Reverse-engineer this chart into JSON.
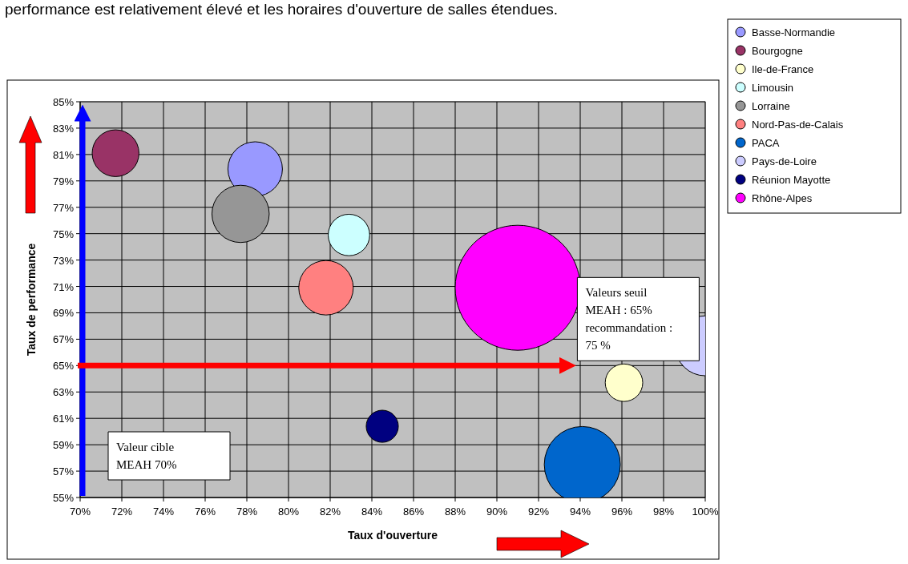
{
  "chart_data": {
    "type": "bubble",
    "annotations": [
      "performance est relativement élevé et les horaires d'ouverture de salles étendues."
    ],
    "xlabel": "Taux d'ouverture",
    "ylabel": "Taux de performance",
    "xlim": [
      70,
      100
    ],
    "ylim": [
      55,
      85
    ],
    "xticks": [
      {
        "value": 70,
        "label": "70%"
      },
      {
        "value": 72,
        "label": "72%"
      },
      {
        "value": 74,
        "label": "74%"
      },
      {
        "value": 76,
        "label": "76%"
      },
      {
        "value": 78,
        "label": "78%"
      },
      {
        "value": 80,
        "label": "80%"
      },
      {
        "value": 82,
        "label": "82%"
      },
      {
        "value": 84,
        "label": "84%"
      },
      {
        "value": 86,
        "label": "86%"
      },
      {
        "value": 88,
        "label": "88%"
      },
      {
        "value": 90,
        "label": "90%"
      },
      {
        "value": 92,
        "label": "92%"
      },
      {
        "value": 94,
        "label": "94%"
      },
      {
        "value": 96,
        "label": "96%"
      },
      {
        "value": 98,
        "label": "98%"
      },
      {
        "value": 100,
        "label": "100%"
      }
    ],
    "yticks": [
      {
        "value": 55,
        "label": "55%"
      },
      {
        "value": 57,
        "label": "57%"
      },
      {
        "value": 59,
        "label": "59%"
      },
      {
        "value": 61,
        "label": "61%"
      },
      {
        "value": 63,
        "label": "63%"
      },
      {
        "value": 65,
        "label": "65%"
      },
      {
        "value": 67,
        "label": "67%"
      },
      {
        "value": 69,
        "label": "69%"
      },
      {
        "value": 71,
        "label": "71%"
      },
      {
        "value": 73,
        "label": "73%"
      },
      {
        "value": 75,
        "label": "75%"
      },
      {
        "value": 77,
        "label": "77%"
      },
      {
        "value": 79,
        "label": "79%"
      },
      {
        "value": 81,
        "label": "81%"
      },
      {
        "value": 83,
        "label": "83%"
      },
      {
        "value": 85,
        "label": "85%"
      }
    ],
    "grid": true,
    "legend": "top right",
    "ref_lines": [
      {
        "axis": "x",
        "value": 70,
        "label": "Valeur cible\nMEAH 70%",
        "color": "#0000ff"
      },
      {
        "axis": "y",
        "value": 65,
        "label": "Valeurs seuil\nMEAH : 65%\nrecommandation :\n75 %",
        "color": "#ff0000"
      }
    ],
    "series": [
      {
        "name": "Basse-Normandie",
        "color": "#9999ff",
        "x": [
          78.4
        ],
        "values": [
          79.9
        ],
        "sizes": [
          0.19
        ]
      },
      {
        "name": "Bourgogne",
        "color": "#993366",
        "x": [
          71.7
        ],
        "values": [
          81.1
        ],
        "sizes": [
          0.14
        ]
      },
      {
        "name": "Ile-de-France",
        "color": "#ffffcc",
        "x": [
          96.1
        ],
        "values": [
          63.7
        ],
        "sizes": [
          0.09
        ]
      },
      {
        "name": "Limousin",
        "color": "#ccffff",
        "x": [
          82.9
        ],
        "values": [
          74.9
        ],
        "sizes": [
          0.11
        ]
      },
      {
        "name": "Lorraine",
        "color": "#969696",
        "x": [
          77.7
        ],
        "values": [
          76.5
        ],
        "sizes": [
          0.21
        ]
      },
      {
        "name": "Nord-Pas-de-Calais",
        "color": "#ff8080",
        "x": [
          81.8
        ],
        "values": [
          70.9
        ],
        "sizes": [
          0.19
        ]
      },
      {
        "name": "PACA",
        "color": "#0066cc",
        "x": [
          94.1
        ],
        "values": [
          57.5
        ],
        "sizes": [
          0.37
        ]
      },
      {
        "name": "Pays-de-Loire",
        "color": "#ccccff",
        "x": [
          100
        ],
        "values": [
          66.5
        ],
        "sizes": [
          0.23
        ]
      },
      {
        "name": "Réunion Mayotte",
        "color": "#000080",
        "x": [
          84.5
        ],
        "values": [
          60.4
        ],
        "sizes": [
          0.066
        ]
      },
      {
        "name": "Rhône-Alpes",
        "color": "#ff00ff",
        "x": [
          91
        ],
        "values": [
          70.9
        ],
        "sizes": [
          1
        ]
      }
    ]
  }
}
